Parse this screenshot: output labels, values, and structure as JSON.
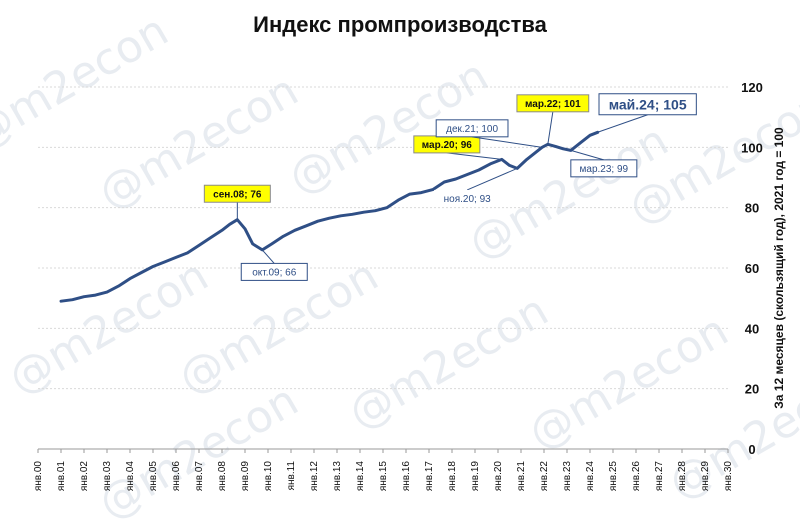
{
  "watermark": "@m2econ",
  "chart_data": {
    "type": "line",
    "title": "Индекс промпроизводства",
    "ylabel": "За 12 месяцев (скользящий год), 2021 год = 100",
    "ylim": [
      0,
      120
    ],
    "yticks": [
      0,
      20,
      40,
      60,
      80,
      100,
      120
    ],
    "xlim": [
      "2000-01",
      "2030-01"
    ],
    "xticks": [
      "янв.00",
      "янв.01",
      "янв.02",
      "янв.03",
      "янв.04",
      "янв.05",
      "янв.06",
      "янв.07",
      "янв.08",
      "янв.09",
      "янв.10",
      "янв.11",
      "янв.12",
      "янв.13",
      "янв.14",
      "янв.15",
      "янв.16",
      "янв.17",
      "янв.18",
      "янв.19",
      "янв.20",
      "янв.21",
      "янв.22",
      "янв.23",
      "янв.24",
      "янв.25",
      "янв.26",
      "янв.27",
      "янв.28",
      "янв.29",
      "янв.30"
    ],
    "grid": "horizontal",
    "series": [
      {
        "color": "#2f4f86",
        "points": [
          [
            "2001-01",
            49
          ],
          [
            "2001-07",
            49.5
          ],
          [
            "2002-01",
            50.5
          ],
          [
            "2002-07",
            51
          ],
          [
            "2003-01",
            52
          ],
          [
            "2003-07",
            54
          ],
          [
            "2004-01",
            56.5
          ],
          [
            "2004-07",
            58.5
          ],
          [
            "2005-01",
            60.5
          ],
          [
            "2005-07",
            62
          ],
          [
            "2006-01",
            63.5
          ],
          [
            "2006-07",
            65
          ],
          [
            "2007-01",
            67.5
          ],
          [
            "2007-07",
            70
          ],
          [
            "2008-01",
            72.5
          ],
          [
            "2008-05",
            74.5
          ],
          [
            "2008-09",
            76
          ],
          [
            "2009-01",
            73
          ],
          [
            "2009-05",
            68
          ],
          [
            "2009-10",
            66
          ],
          [
            "2010-03",
            68
          ],
          [
            "2010-09",
            70.5
          ],
          [
            "2011-03",
            72.5
          ],
          [
            "2011-09",
            74
          ],
          [
            "2012-03",
            75.5
          ],
          [
            "2012-09",
            76.5
          ],
          [
            "2013-03",
            77.3
          ],
          [
            "2013-09",
            77.8
          ],
          [
            "2014-03",
            78.5
          ],
          [
            "2014-09",
            79
          ],
          [
            "2015-03",
            80
          ],
          [
            "2015-09",
            82.5
          ],
          [
            "2016-03",
            84.5
          ],
          [
            "2016-09",
            85
          ],
          [
            "2017-03",
            86
          ],
          [
            "2017-09",
            88.5
          ],
          [
            "2018-03",
            89.5
          ],
          [
            "2018-09",
            91
          ],
          [
            "2019-03",
            92.5
          ],
          [
            "2019-09",
            94.5
          ],
          [
            "2020-03",
            96
          ],
          [
            "2020-07",
            94
          ],
          [
            "2020-11",
            93
          ],
          [
            "2021-04",
            96
          ],
          [
            "2021-12",
            100
          ],
          [
            "2022-03",
            101
          ],
          [
            "2022-07",
            100.3
          ],
          [
            "2022-11",
            99.5
          ],
          [
            "2023-03",
            99
          ],
          [
            "2023-08",
            101.5
          ],
          [
            "2024-01",
            104
          ],
          [
            "2024-05",
            105
          ]
        ]
      }
    ],
    "annotations": [
      {
        "text": "сен.08; 76",
        "x": "2008-09",
        "y": 76,
        "style": "highlight"
      },
      {
        "text": "окт.09; 66",
        "x": "2009-10",
        "y": 66,
        "style": "box"
      },
      {
        "text": "мар.20; 96",
        "x": "2020-03",
        "y": 96,
        "style": "highlight"
      },
      {
        "text": "ноя.20; 93",
        "x": "2020-11",
        "y": 93,
        "style": "plain"
      },
      {
        "text": "дек.21; 100",
        "x": "2021-12",
        "y": 100,
        "style": "box"
      },
      {
        "text": "мар.22; 101",
        "x": "2022-03",
        "y": 101,
        "style": "highlight"
      },
      {
        "text": "мар.23; 99",
        "x": "2023-03",
        "y": 99,
        "style": "box"
      },
      {
        "text": "май.24; 105",
        "x": "2024-05",
        "y": 105,
        "style": "large"
      }
    ]
  }
}
